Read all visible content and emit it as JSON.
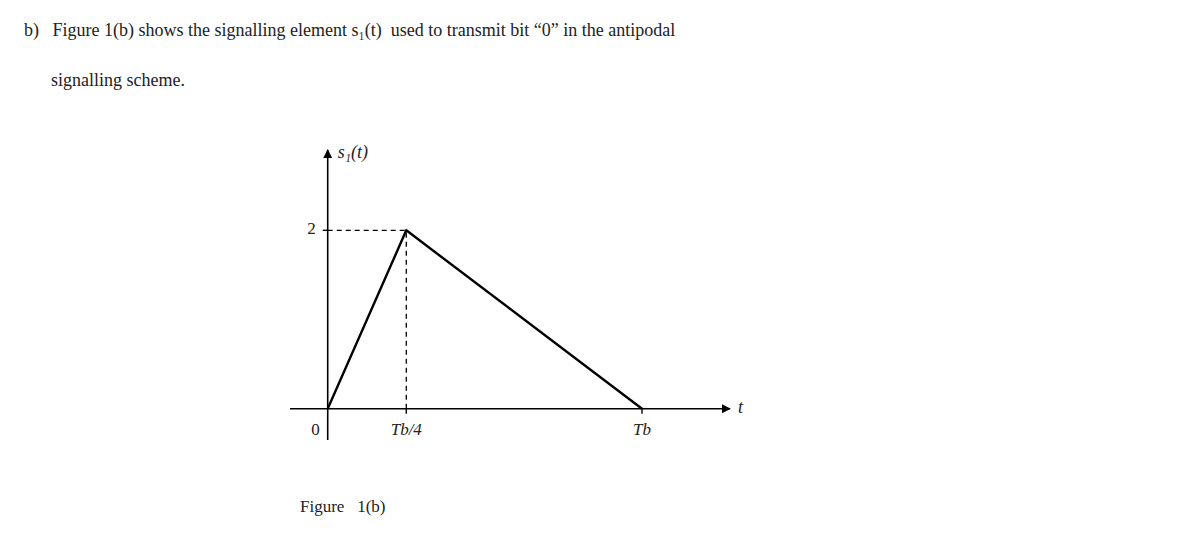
{
  "chart_data": {
    "type": "line",
    "title": "b)   Figure 1(b) shows the signalling element s₁(t)  used to transmit bit “0” in the antipodal",
    "subtitle": "      signalling scheme.",
    "caption": "Figure   1(b)",
    "x_label": "t",
    "y_label": "s₁(t)",
    "x": [
      0,
      0.25,
      1.0
    ],
    "values": [
      0,
      2,
      0
    ],
    "color": "#000000",
    "xlim": [
      -0.12,
      1.28
    ],
    "ylim": [
      -0.35,
      2.9
    ],
    "xticks": [
      0,
      {
        "value": 0.25,
        "label": "Tb/4"
      },
      {
        "value": 1.0,
        "label": "Tb"
      }
    ],
    "yticks": [
      2
    ],
    "grid": false
  }
}
